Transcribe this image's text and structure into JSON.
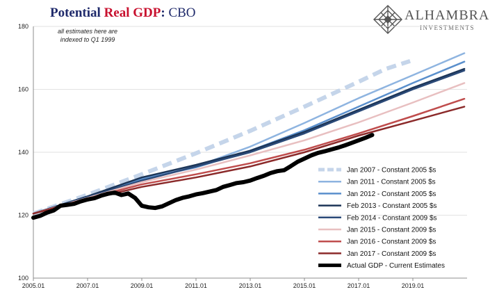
{
  "header": {
    "title_part1": "Potential ",
    "title_part2": "Real GDP",
    "title_part3": ":",
    "title_part4": "  CBO"
  },
  "logo": {
    "name": "ALHAMBRA",
    "subtitle": "INVESTMENTS",
    "icon": "diamond-lattice-icon",
    "color": "#555555"
  },
  "chart_data": {
    "type": "line",
    "annotation_lines": [
      "all estimates here are",
      "indexed to Q1 1999"
    ],
    "xlim": [
      2005.0,
      2021.0
    ],
    "ylim": [
      100,
      180
    ],
    "x_ticks": [
      2005,
      2007,
      2009,
      2011,
      2013,
      2015,
      2017,
      2019
    ],
    "x_tick_labels": [
      "2005.01",
      "2007.01",
      "2009.01",
      "2011.01",
      "2013.01",
      "2015.01",
      "2017.01",
      "2019.01"
    ],
    "y_ticks": [
      100,
      120,
      140,
      160,
      180
    ],
    "y_tick_labels": [
      "100",
      "120",
      "140",
      "160",
      "180"
    ],
    "grid": "horizontal",
    "legend_position": "bottom-right",
    "series": [
      {
        "name": "Jan 2007 - Constant 2005 $s",
        "color": "#c5d5ea",
        "dashed": true,
        "width": 6,
        "points": [
          [
            2005.0,
            120.5
          ],
          [
            2007.0,
            126.5
          ],
          [
            2009.0,
            133.0
          ],
          [
            2011.0,
            139.7
          ],
          [
            2013.0,
            146.8
          ],
          [
            2015.0,
            154.5
          ],
          [
            2017.0,
            162.4
          ],
          [
            2018.0,
            166.5
          ],
          [
            2018.9,
            169.0
          ]
        ]
      },
      {
        "name": "Jan 2011 - Constant 2005 $s",
        "color": "#8eb4e0",
        "dashed": false,
        "width": 2.5,
        "points": [
          [
            2005.0,
            120.5
          ],
          [
            2007.0,
            126.0
          ],
          [
            2009.0,
            131.5
          ],
          [
            2011.0,
            135.5
          ],
          [
            2013.0,
            141.8
          ],
          [
            2015.0,
            149.3
          ],
          [
            2017.0,
            157.2
          ],
          [
            2019.0,
            164.5
          ],
          [
            2020.9,
            171.5
          ]
        ]
      },
      {
        "name": "Jan 2012 - Constant 2005 $s",
        "color": "#5a8fcc",
        "dashed": false,
        "width": 2.5,
        "points": [
          [
            2005.0,
            120.5
          ],
          [
            2007.0,
            126.0
          ],
          [
            2009.0,
            131.5
          ],
          [
            2011.0,
            135.2
          ],
          [
            2013.0,
            140.5
          ],
          [
            2015.0,
            147.0
          ],
          [
            2017.0,
            154.5
          ],
          [
            2019.0,
            162.0
          ],
          [
            2020.9,
            168.8
          ]
        ]
      },
      {
        "name": "Feb 2013 - Constant 2005 $s",
        "color": "#1c3557",
        "dashed": false,
        "width": 2.5,
        "points": [
          [
            2005.0,
            120.5
          ],
          [
            2007.0,
            126.0
          ],
          [
            2009.0,
            132.0
          ],
          [
            2011.0,
            136.0
          ],
          [
            2013.0,
            140.5
          ],
          [
            2015.0,
            146.5
          ],
          [
            2017.0,
            153.5
          ],
          [
            2019.0,
            160.5
          ],
          [
            2020.9,
            166.5
          ]
        ]
      },
      {
        "name": "Feb 2014 - Constant 2009 $s",
        "color": "#2b4a78",
        "dashed": false,
        "width": 2.5,
        "points": [
          [
            2005.0,
            120.5
          ],
          [
            2007.0,
            125.8
          ],
          [
            2009.0,
            131.0
          ],
          [
            2011.0,
            135.5
          ],
          [
            2013.0,
            140.0
          ],
          [
            2015.0,
            146.0
          ],
          [
            2017.0,
            153.0
          ],
          [
            2019.0,
            160.0
          ],
          [
            2020.9,
            166.0
          ]
        ]
      },
      {
        "name": "Jan 2015 - Constant 2009 $s",
        "color": "#e8bfc0",
        "dashed": false,
        "width": 2.5,
        "points": [
          [
            2005.0,
            120.5
          ],
          [
            2007.0,
            125.5
          ],
          [
            2009.0,
            130.5
          ],
          [
            2011.0,
            134.5
          ],
          [
            2013.0,
            139.0
          ],
          [
            2015.0,
            143.8
          ],
          [
            2017.0,
            149.5
          ],
          [
            2019.0,
            155.8
          ],
          [
            2020.9,
            162.0
          ]
        ]
      },
      {
        "name": "Jan 2016 - Constant 2009 $s",
        "color": "#bf4c4c",
        "dashed": false,
        "width": 2.5,
        "points": [
          [
            2005.0,
            120.5
          ],
          [
            2007.0,
            125.3
          ],
          [
            2009.0,
            129.8
          ],
          [
            2011.0,
            133.0
          ],
          [
            2013.0,
            136.5
          ],
          [
            2015.0,
            140.8
          ],
          [
            2017.0,
            146.0
          ],
          [
            2019.0,
            151.5
          ],
          [
            2020.9,
            157.0
          ]
        ]
      },
      {
        "name": "Jan 2017 - Constant 2009 $s",
        "color": "#8b2a2a",
        "dashed": false,
        "width": 2.5,
        "points": [
          [
            2005.0,
            120.5
          ],
          [
            2007.0,
            125.0
          ],
          [
            2009.0,
            129.0
          ],
          [
            2011.0,
            132.0
          ],
          [
            2013.0,
            135.5
          ],
          [
            2015.0,
            140.0
          ],
          [
            2017.0,
            145.3
          ],
          [
            2019.0,
            150.0
          ],
          [
            2020.9,
            154.5
          ]
        ]
      },
      {
        "name": "Actual GDP - Current Estimates",
        "color": "#000000",
        "dashed": false,
        "width": 6,
        "points": [
          [
            2005.0,
            119.2
          ],
          [
            2005.25,
            119.8
          ],
          [
            2005.5,
            120.8
          ],
          [
            2005.75,
            121.5
          ],
          [
            2006.0,
            123.0
          ],
          [
            2006.25,
            123.3
          ],
          [
            2006.5,
            123.6
          ],
          [
            2006.75,
            124.4
          ],
          [
            2007.0,
            125.0
          ],
          [
            2007.25,
            125.4
          ],
          [
            2007.5,
            126.2
          ],
          [
            2007.75,
            126.8
          ],
          [
            2008.0,
            127.2
          ],
          [
            2008.25,
            126.4
          ],
          [
            2008.5,
            126.9
          ],
          [
            2008.75,
            125.5
          ],
          [
            2009.0,
            123.0
          ],
          [
            2009.25,
            122.5
          ],
          [
            2009.5,
            122.3
          ],
          [
            2009.75,
            122.8
          ],
          [
            2010.0,
            123.8
          ],
          [
            2010.25,
            124.8
          ],
          [
            2010.5,
            125.5
          ],
          [
            2010.75,
            126.0
          ],
          [
            2011.0,
            126.6
          ],
          [
            2011.25,
            127.0
          ],
          [
            2011.5,
            127.5
          ],
          [
            2011.75,
            128.0
          ],
          [
            2012.0,
            129.0
          ],
          [
            2012.25,
            129.6
          ],
          [
            2012.5,
            130.2
          ],
          [
            2012.75,
            130.5
          ],
          [
            2013.0,
            131.0
          ],
          [
            2013.25,
            131.8
          ],
          [
            2013.5,
            132.5
          ],
          [
            2013.75,
            133.4
          ],
          [
            2014.0,
            134.0
          ],
          [
            2014.25,
            134.3
          ],
          [
            2014.5,
            135.6
          ],
          [
            2014.75,
            137.0
          ],
          [
            2015.0,
            138.0
          ],
          [
            2015.25,
            139.0
          ],
          [
            2015.5,
            139.8
          ],
          [
            2015.75,
            140.3
          ],
          [
            2016.0,
            140.9
          ],
          [
            2016.25,
            141.5
          ],
          [
            2016.5,
            142.2
          ],
          [
            2016.75,
            143.0
          ],
          [
            2017.0,
            143.8
          ],
          [
            2017.25,
            144.6
          ],
          [
            2017.5,
            145.5
          ]
        ]
      }
    ]
  }
}
